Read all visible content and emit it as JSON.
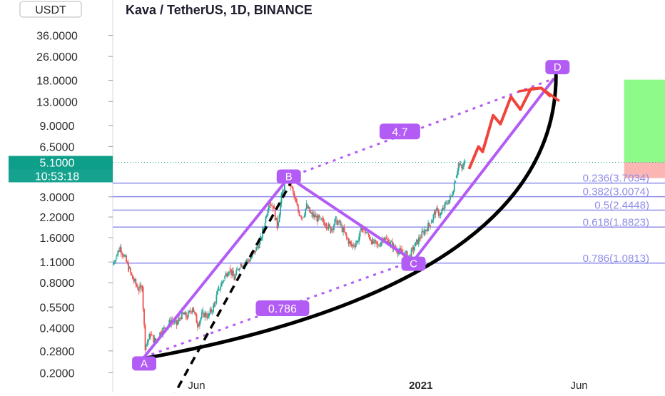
{
  "chart_data": {
    "type": "line",
    "title": "Kava / TetherUS, 1D, BINANCE",
    "currency_badge": "USDT",
    "y_scale": "log",
    "ylim": [
      0.165,
      62
    ],
    "xlim": [
      "2020-03-13",
      "2021-08-22"
    ],
    "y_ticks": [
      {
        "label": "36.0000",
        "value": 36
      },
      {
        "label": "26.0000",
        "value": 26
      },
      {
        "label": "18.0000",
        "value": 18
      },
      {
        "label": "13.0000",
        "value": 13
      },
      {
        "label": "9.0000",
        "value": 9
      },
      {
        "label": "6.5000",
        "value": 6.5
      },
      {
        "label": "3.0000",
        "value": 3
      },
      {
        "label": "2.2000",
        "value": 2.2
      },
      {
        "label": "1.6000",
        "value": 1.6
      },
      {
        "label": "1.1000",
        "value": 1.1
      },
      {
        "label": "0.8000",
        "value": 0.8
      },
      {
        "label": "0.5500",
        "value": 0.55
      },
      {
        "label": "0.4000",
        "value": 0.4
      },
      {
        "label": "0.2800",
        "value": 0.28
      },
      {
        "label": "0.2000",
        "value": 0.2
      }
    ],
    "x_ticks": [
      {
        "label": "Jun",
        "date": "2020-06-01",
        "bold": false
      },
      {
        "label": "2021",
        "date": "2021-01-01",
        "bold": true
      },
      {
        "label": "Jun",
        "date": "2021-06-01",
        "bold": false
      }
    ],
    "last_price": {
      "label": "5.1000",
      "value": 5.1,
      "countdown": "10:53:18"
    },
    "series": [
      {
        "x": [
          "2020-03-13",
          "2020-03-16",
          "2020-03-20",
          "2020-03-24",
          "2020-03-28",
          "2020-04-01",
          "2020-04-04",
          "2020-04-07",
          "2020-04-10",
          "2020-04-13",
          "2020-04-18",
          "2020-04-23",
          "2020-04-28",
          "2020-05-03",
          "2020-05-08",
          "2020-05-13",
          "2020-05-18",
          "2020-05-23",
          "2020-05-28",
          "2020-06-02",
          "2020-06-07",
          "2020-06-12",
          "2020-06-17",
          "2020-06-22",
          "2020-06-27",
          "2020-07-02",
          "2020-07-07",
          "2020-07-12",
          "2020-07-17",
          "2020-07-22",
          "2020-07-27",
          "2020-08-01",
          "2020-08-05",
          "2020-08-09",
          "2020-08-13",
          "2020-08-17",
          "2020-08-21",
          "2020-08-25",
          "2020-08-29",
          "2020-09-02",
          "2020-09-06",
          "2020-09-10",
          "2020-09-14",
          "2020-09-18",
          "2020-09-22",
          "2020-09-27",
          "2020-10-02",
          "2020-10-07",
          "2020-10-12",
          "2020-10-17",
          "2020-10-22",
          "2020-10-27",
          "2020-11-01",
          "2020-11-06",
          "2020-11-11",
          "2020-11-16",
          "2020-11-21",
          "2020-11-26",
          "2020-12-01",
          "2020-12-06",
          "2020-12-11",
          "2020-12-16",
          "2020-12-21",
          "2020-12-26",
          "2020-12-31",
          "2021-01-05",
          "2021-01-10",
          "2021-01-15",
          "2021-01-20",
          "2021-01-25",
          "2021-01-30",
          "2021-02-03",
          "2021-02-06",
          "2021-02-09",
          "2021-02-12"
        ],
        "values": [
          1.05,
          1.2,
          1.38,
          1.2,
          1.0,
          0.85,
          0.78,
          0.72,
          0.75,
          0.3,
          0.36,
          0.32,
          0.38,
          0.4,
          0.45,
          0.42,
          0.5,
          0.47,
          0.55,
          0.42,
          0.5,
          0.48,
          0.55,
          0.72,
          0.85,
          1.0,
          0.85,
          1.05,
          1.1,
          1.15,
          1.3,
          1.55,
          2.0,
          2.8,
          2.6,
          1.9,
          3.0,
          4.0,
          3.8,
          3.0,
          2.4,
          2.2,
          2.6,
          2.3,
          2.2,
          2.1,
          2.0,
          1.8,
          2.1,
          1.9,
          1.6,
          1.4,
          1.5,
          1.85,
          1.7,
          1.5,
          1.4,
          1.6,
          1.5,
          1.4,
          1.3,
          1.25,
          1.2,
          1.4,
          1.6,
          1.8,
          2.0,
          2.4,
          2.3,
          2.7,
          3.0,
          4.0,
          5.0,
          4.6,
          5.1
        ]
      }
    ],
    "fib_levels": [
      {
        "ratio": 0.236,
        "label": "0.236(3.7034)",
        "value": 3.7034
      },
      {
        "ratio": 0.382,
        "label": "0.382(3.0074)",
        "value": 3.0074
      },
      {
        "ratio": 0.5,
        "label": "0.5(2.4448)",
        "value": 2.4448
      },
      {
        "ratio": 0.618,
        "label": "0.618(1.8823)",
        "value": 1.8823
      },
      {
        "ratio": 0.786,
        "label": "0.786(1.0813)",
        "value": 1.0813
      }
    ],
    "pattern_points": [
      {
        "label": "A",
        "date": "2020-04-12",
        "value": 0.255
      },
      {
        "label": "B",
        "date": "2020-08-28",
        "value": 4.05
      },
      {
        "label": "C",
        "date": "2020-12-25",
        "value": 1.12
      },
      {
        "label": "D",
        "date": "2021-05-08",
        "value": 18.5
      }
    ],
    "ratio_labels": [
      {
        "label": "4.7",
        "date": "2020-12-12",
        "value": 8.2
      },
      {
        "label": "0.786",
        "date": "2020-08-22",
        "value": 0.54
      }
    ],
    "projection": [
      {
        "date": "2021-02-16",
        "value": 4.6
      },
      {
        "date": "2021-02-25",
        "value": 6.5
      },
      {
        "date": "2021-03-01",
        "value": 6.0
      },
      {
        "date": "2021-03-11",
        "value": 10.5
      },
      {
        "date": "2021-03-18",
        "value": 9.2
      },
      {
        "date": "2021-03-28",
        "value": 14.0
      },
      {
        "date": "2021-04-06",
        "value": 11.5
      },
      {
        "date": "2021-04-16",
        "value": 15.8
      },
      {
        "date": "2021-04-26",
        "value": 16.0
      },
      {
        "date": "2021-05-05",
        "value": 14.0
      }
    ],
    "target_zone": {
      "start": "2021-07-14",
      "end": "2021-08-22",
      "top": 18.2,
      "entry": 5.1,
      "stop": 4.0
    },
    "colors": {
      "up": "#26a69a",
      "down": "#ef5350",
      "pattern": "#b35cf5",
      "fib": "#8f8ee8",
      "curve": "#000000",
      "projection": "#f0443a",
      "tp_zone": "#8dfa8a",
      "sl_zone": "#fbb5b3",
      "price_tag": "#0e9f8a",
      "countdown_tag": "#15a38f",
      "price_line": "#26a69a"
    }
  }
}
